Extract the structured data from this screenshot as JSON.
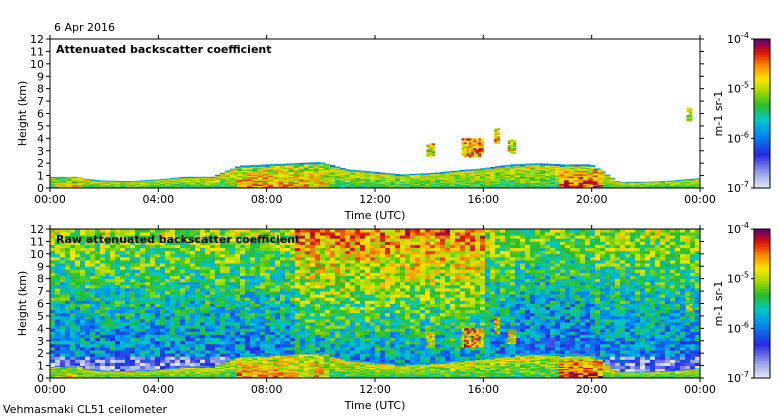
{
  "header": {
    "date": "6 Apr 2016"
  },
  "footer": {
    "instrument": "Vehmasmaki CL51 ceilometer"
  },
  "chart_data": [
    {
      "type": "heatmap",
      "title": "Attenuated backscatter coefficient",
      "xlabel": "Time (UTC)",
      "ylabel": "Height (km)",
      "xticks": [
        "00:00",
        "04:00",
        "08:00",
        "12:00",
        "16:00",
        "20:00",
        "00:00"
      ],
      "xlim_hours": [
        0,
        24
      ],
      "ylim": [
        0,
        12
      ],
      "yticks": [
        0,
        1,
        2,
        3,
        4,
        5,
        6,
        7,
        8,
        9,
        10,
        11,
        12
      ],
      "colorbar": {
        "label": "m-1 sr-1",
        "scale": "log",
        "range": [
          1e-07,
          0.0001
        ],
        "ticks": [
          "10-7",
          "10-6",
          "10-5",
          "10-4"
        ]
      },
      "noise_background": false
    },
    {
      "type": "heatmap",
      "title": "Raw attenuated backscatter coefficient",
      "xlabel": "Time (UTC)",
      "ylabel": "Height (km)",
      "xticks": [
        "00:00",
        "04:00",
        "08:00",
        "12:00",
        "16:00",
        "20:00",
        "00:00"
      ],
      "xlim_hours": [
        0,
        24
      ],
      "ylim": [
        0,
        12
      ],
      "yticks": [
        0,
        1,
        2,
        3,
        4,
        5,
        6,
        7,
        8,
        9,
        10,
        11,
        12
      ],
      "colorbar": {
        "label": "m-1 sr-1",
        "scale": "log",
        "range": [
          1e-07,
          0.0001
        ],
        "ticks": [
          "10-7",
          "10-6",
          "10-5",
          "10-4"
        ]
      },
      "noise_background": true
    }
  ],
  "features": {
    "boundary_layer_top_km": [
      [
        0,
        0.9
      ],
      [
        1,
        0.8
      ],
      [
        2,
        0.6
      ],
      [
        3,
        0.55
      ],
      [
        4,
        0.7
      ],
      [
        5,
        0.9
      ],
      [
        6,
        0.9
      ],
      [
        7,
        1.8
      ],
      [
        8,
        1.9
      ],
      [
        9,
        2.0
      ],
      [
        10,
        2.1
      ],
      [
        11,
        1.5
      ],
      [
        12,
        1.3
      ],
      [
        13,
        1.1
      ],
      [
        14,
        1.2
      ],
      [
        15,
        1.4
      ],
      [
        16,
        1.6
      ],
      [
        17,
        1.9
      ],
      [
        18,
        2.0
      ],
      [
        19,
        1.9
      ],
      [
        20,
        1.9
      ],
      [
        21,
        0.5
      ],
      [
        22,
        0.5
      ],
      [
        23,
        0.6
      ],
      [
        24,
        0.8
      ]
    ],
    "cloud_patches": [
      {
        "t0": 13.9,
        "t1": 14.2,
        "z0": 2.5,
        "z1": 3.6,
        "lvl": 0.72
      },
      {
        "t0": 15.2,
        "t1": 16.0,
        "z0": 2.5,
        "z1": 4.0,
        "lvl": 0.8
      },
      {
        "t0": 16.4,
        "t1": 16.6,
        "z0": 3.6,
        "z1": 4.8,
        "lvl": 0.75
      },
      {
        "t0": 16.9,
        "t1": 17.2,
        "z0": 2.8,
        "z1": 3.9,
        "lvl": 0.7
      },
      {
        "t0": 23.5,
        "t1": 23.7,
        "z0": 5.4,
        "z1": 6.6,
        "lvl": 0.65
      }
    ],
    "strong_layers": [
      {
        "t0": 6.9,
        "t1": 9.0,
        "z0": 0.0,
        "z1": 1.6,
        "lvl": 0.82
      },
      {
        "t0": 9.0,
        "t1": 10.3,
        "z0": 0.0,
        "z1": 1.9,
        "lvl": 0.78
      },
      {
        "t0": 18.8,
        "t1": 20.4,
        "z0": 0.0,
        "z1": 1.5,
        "lvl": 0.9
      },
      {
        "t0": 0.2,
        "t1": 1.2,
        "z0": 0.0,
        "z1": 0.9,
        "lvl": 0.75
      }
    ]
  }
}
